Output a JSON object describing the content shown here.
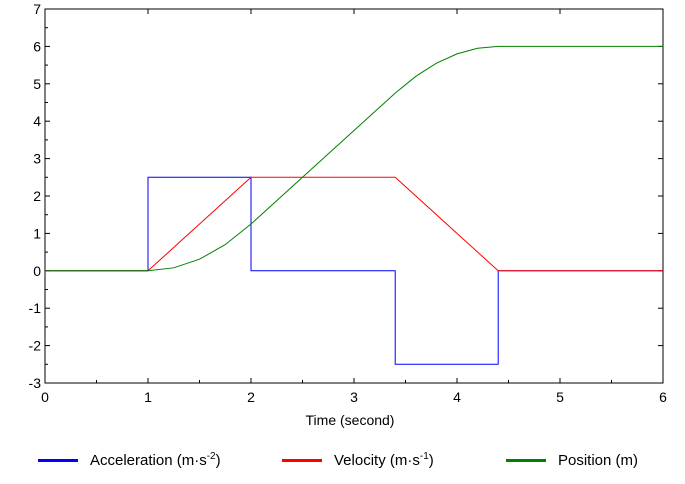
{
  "chart_data": {
    "type": "line",
    "title": "",
    "xlabel": "Time (second)",
    "ylabel": "",
    "xlim": [
      0,
      6
    ],
    "ylim": [
      -3,
      7
    ],
    "x_ticks": [
      "0",
      "1",
      "2",
      "3",
      "4",
      "5",
      "6"
    ],
    "y_ticks": [
      "-3",
      "-2",
      "-1",
      "0",
      "1",
      "2",
      "3",
      "4",
      "5",
      "6",
      "7"
    ],
    "grid": false,
    "legend_position": "bottom",
    "series": [
      {
        "name": "Acceleration (m·s⁻²)",
        "legend_label": "Acceleration (m·s",
        "legend_sup": "-2",
        "legend_suffix": ")",
        "color": "#0000ff",
        "step": true,
        "x": [
          0,
          1,
          1,
          2,
          2,
          3.4,
          3.4,
          4.4,
          4.4,
          6
        ],
        "y": [
          0,
          0,
          2.5,
          2.5,
          0,
          0,
          -2.5,
          -2.5,
          0,
          0
        ]
      },
      {
        "name": "Velocity (m·s⁻¹)",
        "legend_label": "Velocity (m·s",
        "legend_sup": "-1",
        "legend_suffix": ")",
        "color": "#ff0000",
        "x": [
          0,
          1,
          2,
          3.4,
          4.4,
          6
        ],
        "y": [
          0,
          0,
          2.5,
          2.5,
          0,
          0
        ]
      },
      {
        "name": "Position (m)",
        "legend_label": "Position (m)",
        "legend_sup": "",
        "legend_suffix": "",
        "color": "#008000",
        "x": [
          0,
          1,
          1.25,
          1.5,
          1.75,
          2,
          2.25,
          2.5,
          2.75,
          3,
          3.25,
          3.4,
          3.6,
          3.8,
          4,
          4.2,
          4.4,
          4.6,
          5,
          6
        ],
        "y": [
          0,
          0,
          0.08,
          0.31,
          0.7,
          1.25,
          1.875,
          2.5,
          3.125,
          3.75,
          4.375,
          4.75,
          5.2,
          5.55,
          5.8,
          5.95,
          6.0,
          6.0,
          6.0,
          6.0
        ]
      }
    ]
  }
}
